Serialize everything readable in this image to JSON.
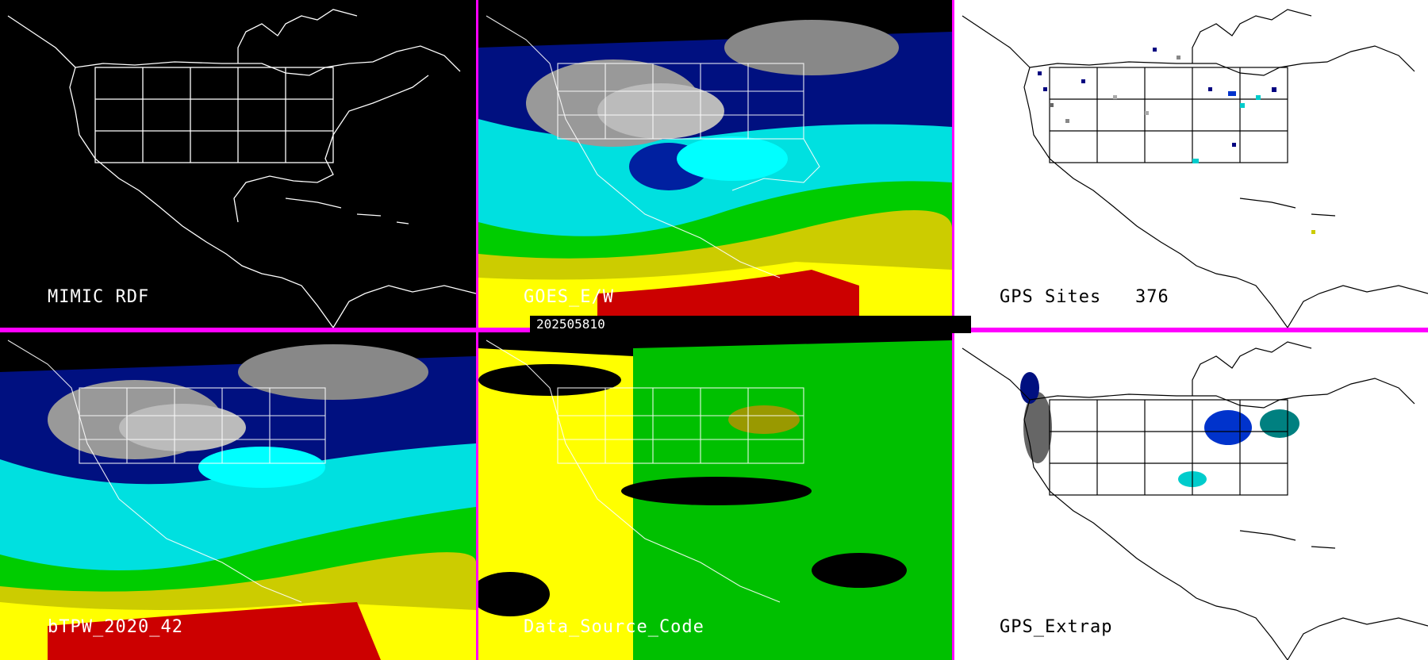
{
  "panels": {
    "mimic_rdf": {
      "label": "MIMIC RDF"
    },
    "goes": {
      "label": "GOES_E/W"
    },
    "gps_sites": {
      "label": "GPS Sites",
      "count": "376"
    },
    "btpw": {
      "label": "bTPW_2020_42"
    },
    "data_source": {
      "label": "Data_Source_Code"
    },
    "gps_extrap": {
      "label": "GPS_Extrap"
    }
  },
  "timestamp": "202505810",
  "colors": {
    "separator": "#ff00ff",
    "tpw_scale": [
      "#000080",
      "#0033cc",
      "#00ffff",
      "#00cc00",
      "#cccc00",
      "#ffff00",
      "#cc0000"
    ],
    "data_source_codes": [
      "#ffff00",
      "#00c000"
    ]
  }
}
